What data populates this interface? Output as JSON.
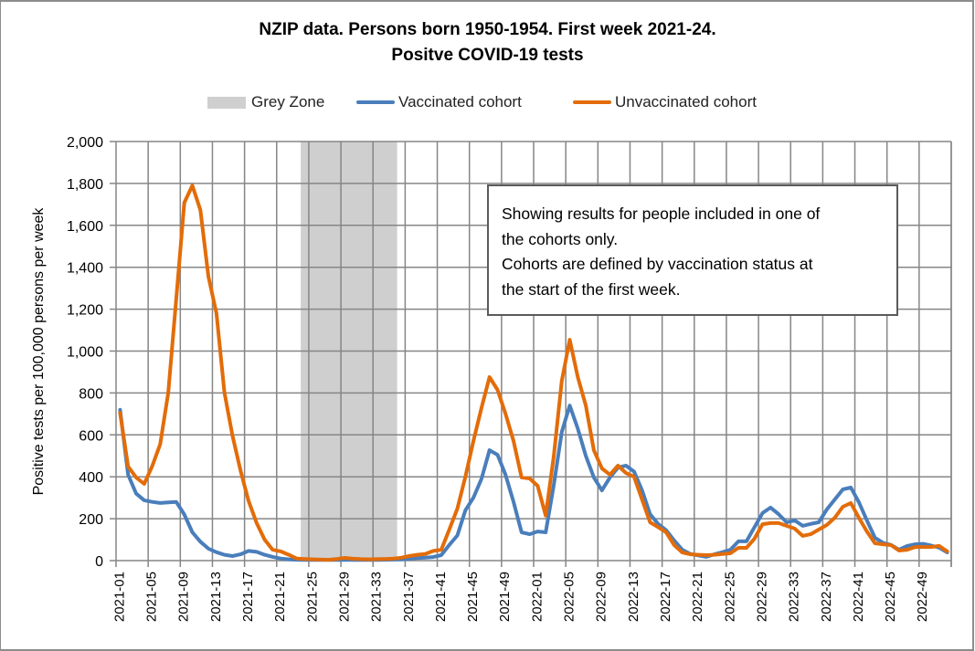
{
  "chart_data": {
    "type": "line",
    "title": "NZIP data. Persons born 1950-1954. First week 2021-24.",
    "subtitle": "Positve COVID-19 tests",
    "xlabel": "",
    "ylabel": "Positive tests per 100,000 persons per week",
    "ylim": [
      0,
      2000
    ],
    "yticks": [
      0,
      200,
      400,
      600,
      800,
      1000,
      1200,
      1400,
      1600,
      1800,
      2000
    ],
    "ytick_labels": [
      "0",
      "200",
      "400",
      "600",
      "800",
      "1,000",
      "1,200",
      "1,400",
      "1,600",
      "1,800",
      "2,000"
    ],
    "grid": true,
    "legend_position": "top",
    "x_label_every": 4,
    "x_years": [
      "2021",
      "2022"
    ],
    "weeks_per_year": 52,
    "shaded_region": {
      "name": "Grey Zone",
      "from": "2021-24",
      "to": "2021-35",
      "color": "#cfcfcf"
    },
    "series": [
      {
        "name": "Vaccinated cohort",
        "color": "#4a7ebb",
        "values": [
          720,
          410,
          320,
          288,
          280,
          275,
          278,
          280,
          220,
          135,
          90,
          57,
          40,
          28,
          22,
          30,
          46,
          42,
          28,
          18,
          10,
          6,
          4,
          3,
          3,
          3,
          3,
          3,
          4,
          3,
          3,
          3,
          3,
          4,
          5,
          6,
          9,
          12,
          14,
          17,
          26,
          75,
          120,
          240,
          300,
          390,
          527,
          505,
          410,
          280,
          135,
          126,
          139,
          135,
          360,
          614,
          740,
          630,
          500,
          397,
          335,
          397,
          444,
          453,
          425,
          336,
          222,
          175,
          145,
          96,
          52,
          32,
          25,
          18,
          30,
          40,
          52,
          92,
          92,
          160,
          227,
          253,
          222,
          183,
          192,
          166,
          175,
          183,
          244,
          292,
          340,
          349,
          279,
          192,
          109,
          85,
          75,
          52,
          70,
          78,
          80,
          72,
          62,
          39
        ]
      },
      {
        "name": "Unvaccinated cohort",
        "color": "#e36c09",
        "values": [
          705,
          449,
          397,
          366,
          450,
          555,
          800,
          1250,
          1708,
          1790,
          1673,
          1355,
          1180,
          802,
          597,
          430,
          285,
          180,
          100,
          52,
          44,
          28,
          10,
          8,
          6,
          5,
          4,
          8,
          13,
          9,
          7,
          6,
          7,
          8,
          9,
          14,
          22,
          28,
          32,
          46,
          52,
          148,
          248,
          400,
          571,
          728,
          876,
          815,
          701,
          571,
          397,
          392,
          357,
          215,
          497,
          858,
          1054,
          876,
          740,
          527,
          440,
          410,
          453,
          418,
          400,
          292,
          183,
          160,
          135,
          74,
          39,
          30,
          28,
          26,
          28,
          32,
          35,
          61,
          61,
          105,
          174,
          179,
          179,
          166,
          153,
          118,
          126,
          148,
          170,
          205,
          257,
          275,
          205,
          139,
          83,
          78,
          74,
          48,
          52,
          65,
          65,
          65,
          70,
          44
        ]
      }
    ]
  },
  "legend": {
    "grey_zone": "Grey Zone",
    "vaccinated": "Vaccinated cohort",
    "unvaccinated": "Unvaccinated cohort"
  },
  "note": {
    "lines": [
      "Showing results for people included in one of",
      "the cohorts only.",
      "Cohorts are defined by vaccination status at",
      "the start of the first week."
    ]
  }
}
